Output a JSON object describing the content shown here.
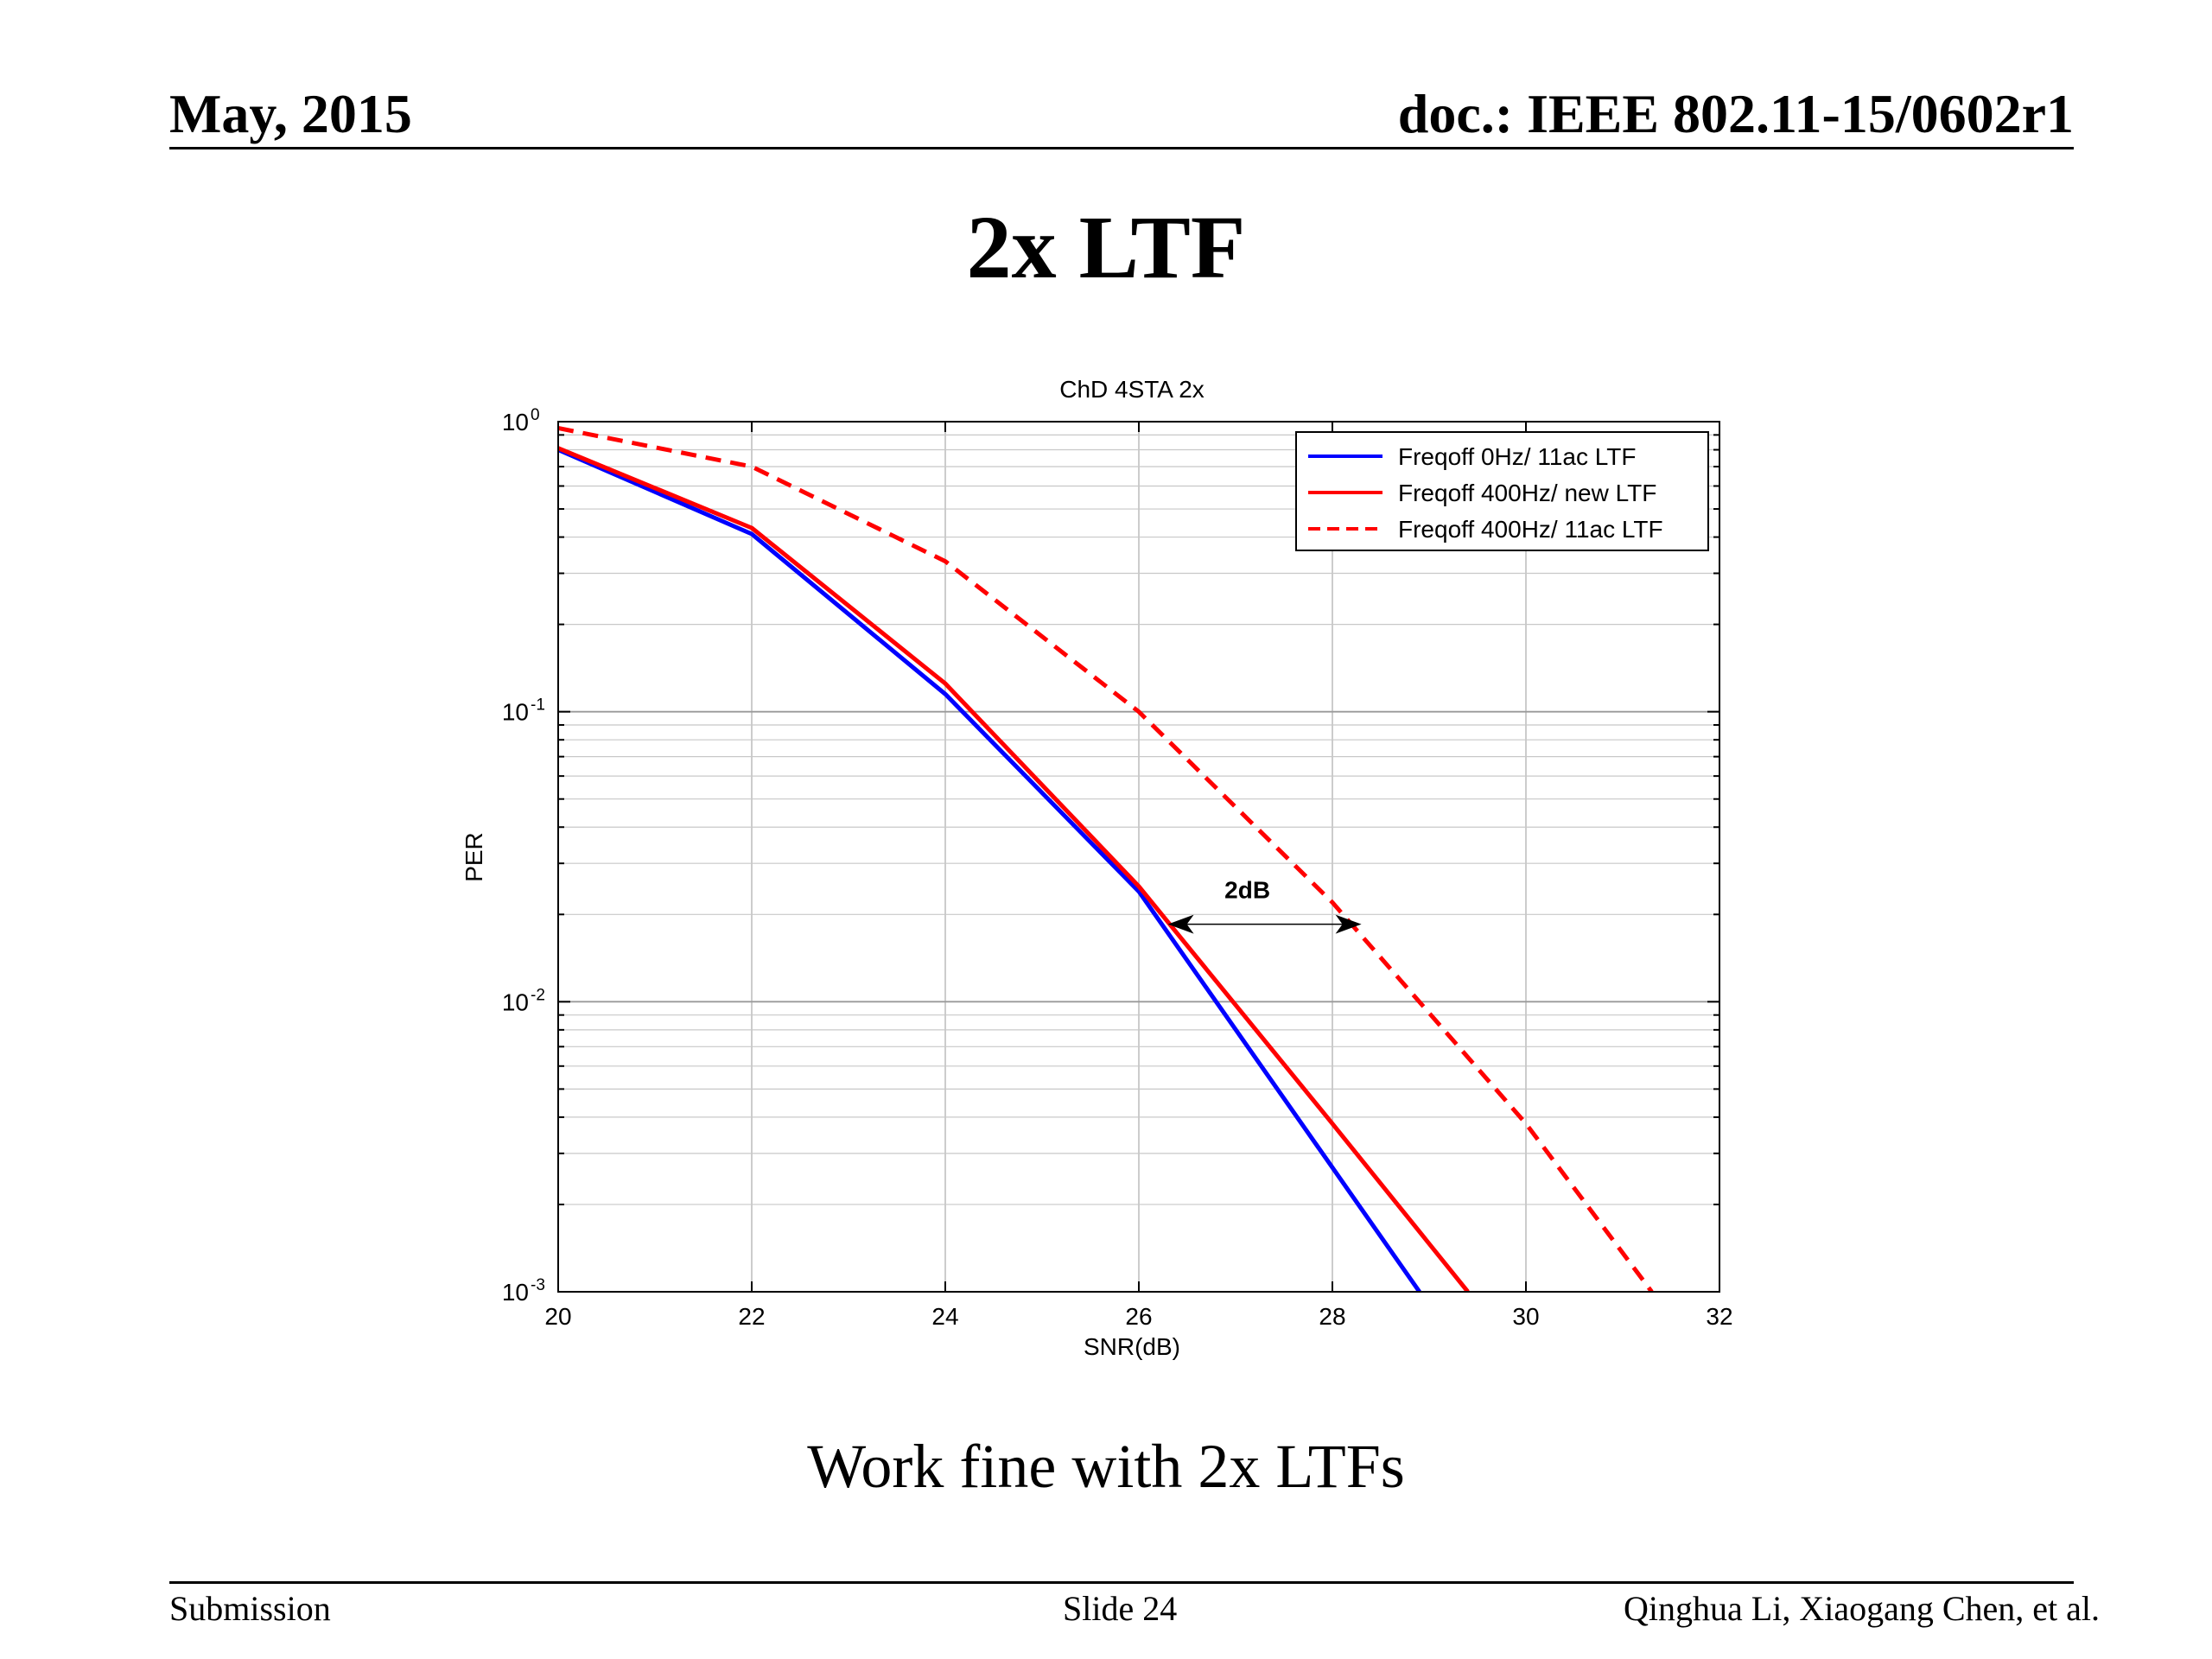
{
  "header": {
    "date": "May, 2015",
    "doc": "doc.: IEEE 802.11-15/0602r1"
  },
  "slide": {
    "title": "2x LTF",
    "caption": "Work fine with 2x LTFs"
  },
  "footer": {
    "left": "Submission",
    "center": "Slide 24",
    "right": "Qinghua Li, Xiaogang Chen, et al."
  },
  "chart_data": {
    "type": "line",
    "title": "ChD 4STA 2x",
    "xlabel": "SNR(dB)",
    "ylabel": "PER",
    "xlim": [
      20,
      32
    ],
    "ylim": [
      0.001,
      1
    ],
    "yscale": "log",
    "grid": true,
    "legend_position": "top-right",
    "x_ticks": [
      "20",
      "22",
      "24",
      "26",
      "28",
      "30",
      "32"
    ],
    "y_ticks": [
      {
        "value": 1,
        "base": "10",
        "exp": "0"
      },
      {
        "value": 0.1,
        "base": "10",
        "exp": "-1"
      },
      {
        "value": 0.01,
        "base": "10",
        "exp": "-2"
      },
      {
        "value": 0.001,
        "base": "10",
        "exp": "-3"
      }
    ],
    "series": [
      {
        "name": "Freqoff 0Hz/ 11ac LTF",
        "color": "#0000ff",
        "dash": "solid",
        "x": [
          20,
          22,
          24,
          26,
          28.9
        ],
        "y": [
          0.8,
          0.41,
          0.115,
          0.024,
          0.001
        ]
      },
      {
        "name": "Freqoff 400Hz/ new LTF",
        "color": "#ff0000",
        "dash": "solid",
        "x": [
          20,
          22,
          24,
          26,
          28,
          29.4
        ],
        "y": [
          0.81,
          0.43,
          0.125,
          0.025,
          0.0038,
          0.001
        ]
      },
      {
        "name": "Freqoff 400Hz/ 11ac LTF",
        "color": "#ff0000",
        "dash": "dashed",
        "x": [
          20,
          22,
          24,
          26,
          28,
          30,
          31.3
        ],
        "y": [
          0.95,
          0.7,
          0.33,
          0.1,
          0.022,
          0.0038,
          0.001
        ]
      }
    ],
    "annotation": {
      "text": "2dB",
      "x_start": 26.3,
      "x_end": 28.3,
      "y": 0.0185
    }
  }
}
